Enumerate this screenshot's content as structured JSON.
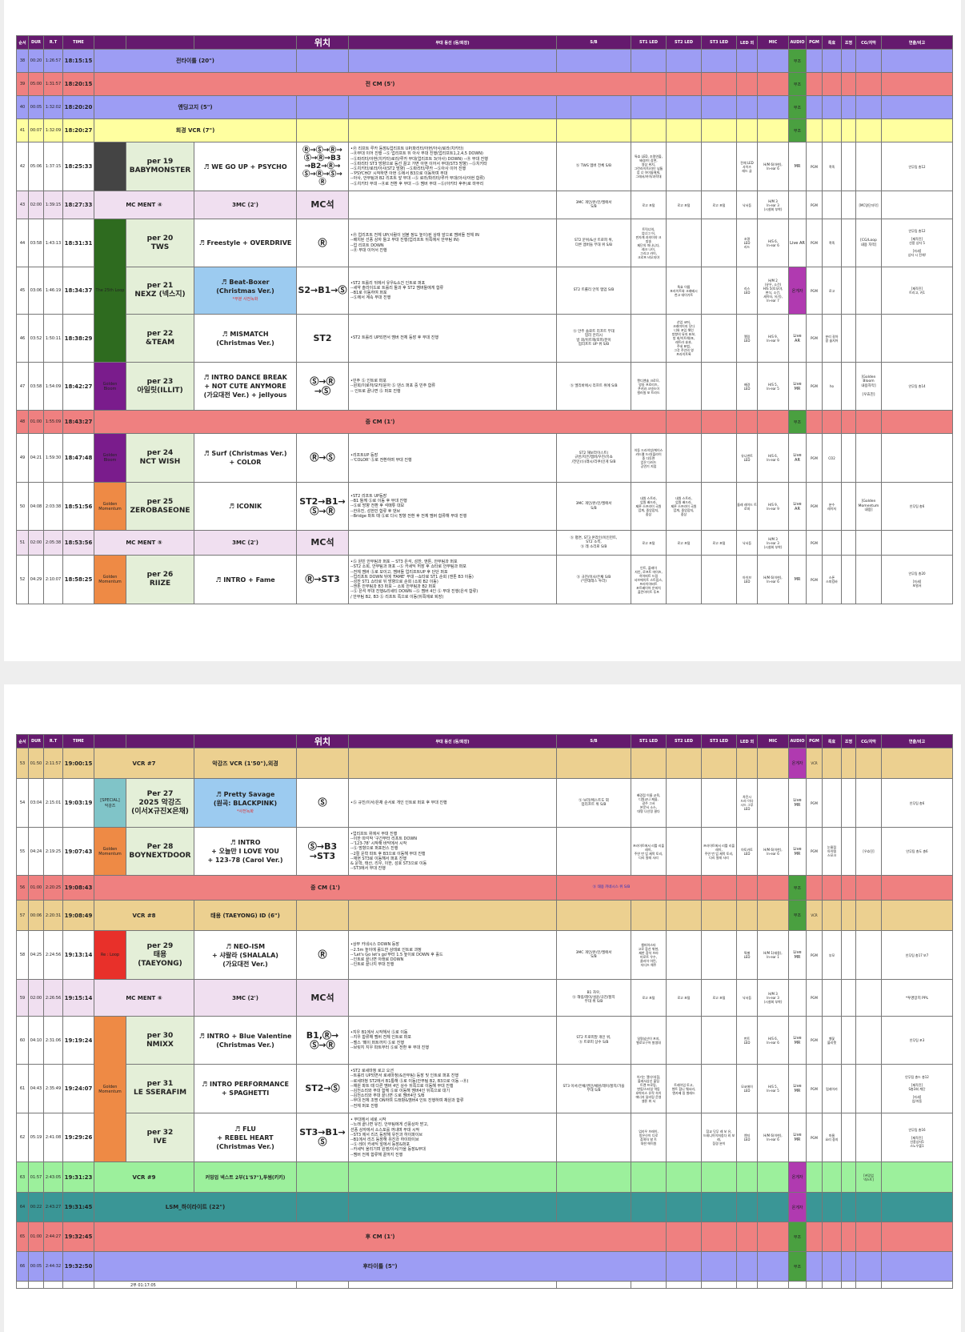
{
  "headers": [
    "순서",
    "DUR",
    "R.T",
    "TIME",
    "",
    "",
    "",
    "위치",
    "무대 동선 (등/퇴장)",
    "S/B",
    "ST1 LED",
    "ST2 LED",
    "ST3 LED",
    "LED 외",
    "MIC",
    "AUDIO",
    "PGM",
    "특효",
    "조명",
    "CG/자막",
    "연출/비고"
  ],
  "colors": {
    "header": "#651a6e",
    "cm": "#ef8080",
    "vtr": "#9d9df4",
    "yellow": "#ffffa0",
    "mcment": "#f0dff0",
    "vcr": "#ecd090",
    "green": "#9cf09c",
    "teal": "#3a9696",
    "loop": "#2e6b1f",
    "bloom": "#7a1c8c",
    "momentum": "#ee8a45",
    "special": "#80c4c8",
    "reloop": "#e8302a"
  },
  "p1": {
    "r38": {
      "no": "38",
      "dur": "00:20",
      "rt": "1:26:57",
      "time": "18:15:15",
      "title": "전타이틀 (20\")",
      "audio": "부조"
    },
    "r39": {
      "no": "39",
      "dur": "05:00",
      "rt": "1:31:57",
      "time": "18:20:15",
      "title": "전 CM (5')",
      "audio": "부조"
    },
    "r40": {
      "no": "40",
      "dur": "00:05",
      "rt": "1:32:02",
      "time": "18:20:20",
      "title": "앤딩고지 (5\")",
      "audio": "부조"
    },
    "r41": {
      "no": "41",
      "dur": "00:07",
      "rt": "1:32:09",
      "time": "18:20:27",
      "title": "회경 VCR (7\")",
      "audio": "부조"
    },
    "r42": {
      "no": "42",
      "dur": "05:06",
      "rt": "1:37:15",
      "time": "18:25:33",
      "per": "per 19",
      "artist": "BABYMONSTER",
      "song": "♬ WE GO UP + PSYCHO",
      "pos": "Ⓡ→Ⓢ→Ⓡ→\nⓈ→Ⓡ→B3\n→B2→Ⓡ→\nⓈ→Ⓡ→Ⓢ→\nⓇ",
      "desc": "•Ⓡ 리프트 루카 등장&업리프트 UP(파리타/아현/아사/로라/치키타)\n--Ⓡ무대 이어 진행 --Ⓢ 업리프트 뒤 아사 무대 진행(업리프트1,2,4,5 DOWN)\n--Ⓢ파리타/아현(치키타)로라/루카 무대(업리프트 3(아사) DOWN) --Ⓡ 무대 진행\n--Ⓢ파리타 ST3 방향으로 등선 끌고 가면 아현 이어서 무대(ST3 방향) --Ⓢ치키타\n--Ⓢ치키타/로라/아사(ST2 방향) --Ⓢ파리타/루카 --Ⓢ아사 이어 진행\n--'PSYCHO' 시작하면 아현 Ⓢ에서 B3으로 이동하며 무대\n--아사, 안무팀과 B2 리프트 앞 무대 --Ⓢ 로라/파리타/루카 무대(아사/아현 합류)\n--Ⓢ치키타 무대 --Ⓡ로 전환 후 무대 --Ⓢ 멤버 무대 --Ⓢ(아키타 후주)로 마무리",
      "sb": "Ⓢ TWS 멤버 전체 S/B",
      "st1": "특효 LED, 조명연출,\n배경/이 장면,\n영상 위치,\n그런라이트/라인 넘툼\n업 너 아이돌에게,\n그래서/카이/과학대",
      "led": "전체 LED\n사이즈\n레드 글",
      "mic": "H/M 6(아현),\nIn-ear 6",
      "au": "MR",
      "pgm": "PGM",
      "fx": "폭죽",
      "vb": "안무팀 총12"
    },
    "r43": {
      "no": "43",
      "dur": "02:00",
      "rt": "1:39:15",
      "time": "18:27:33",
      "title": "MC MENT ④",
      "song": "3MC (2')",
      "pos": "MC석",
      "sb": "3MC 개인/온/인/엘에서\nS/B",
      "st1": "로고 포털",
      "st2": "로고 포털",
      "st3": "로고 포털",
      "led": "낙서등",
      "mic": "H/M 3\nIn-ear 3\n(시설회 부착)",
      "pgm": "PGM",
      "cg": "[MC명단자막]"
    },
    "r44": {
      "no": "44",
      "dur": "03:58",
      "rt": "1:43:13",
      "time": "18:31:31",
      "per": "per 20",
      "artist": "TWS",
      "song": "♬ Freestyle + OVERDRIVE",
      "pos": "Ⓡ",
      "desc": "•Ⓡ 업리프트 전체 UP(사람이 넘볼 정도 높이)된 상태 앞으로 멤버들 전체 IN\n--배치된 선풍 상자 들고 무대 진행(업리프트 뒤쪽에서 안무팀 IN)\n--업 리프트 DOWN\n--Ⓡ 무대 이어서 진행",
      "sb": "ST2 문위/&선 트로피 위,\n다른 멤버들 무대 위 S/B",
      "st1": "트릭너의,\n업너그 어,\n핀자계 과의이야 크\n방송\n제단의 따나니다,\n레크 나이,\n그리고 카이,\n크로프 비오지야",
      "led": "조명\nLED\n리드",
      "mic": "H/S 6,\nIn-ear 6",
      "au": "Live\nAR",
      "pgm": "PGM",
      "fx": "폭죽",
      "cg": "[CG/Loop\n내용 자막]",
      "vb": "안무팀 총12\n\n[제작진]\n선풍 상자 5\n\n[자세]\n상자 시 전체!"
    },
    "r45": {
      "no": "45",
      "dur": "03:06",
      "rt": "1:46:19",
      "time": "18:34:37",
      "grp": "The 25th\nLoop",
      "per": "per 21",
      "artist": "NEXZ (넥스지)",
      "song": "♬ Beat-Boxer\n(Christmas Ver.)",
      "sub": "*부분 사전녹화",
      "pos": "S2→B1→Ⓢ",
      "desc": "•ST2 트롤리 뒤에서 유우&소건 인트로 퍼포\n--세약 솔라이드로 트롤리 돌과 후 ST2 멤버들에게 합류\n--B1로 이동하여 퍼포\n--Ⓢ에서 계속 무대 진행",
      "sb": "ST2 트롤리 안쪽 멤업 S/B",
      "st2": "특효 이름\n포라이트와 크래베시\n천고 데이거트",
      "led": "리스\nLED",
      "mic": "H/M 2\n(유우, 소건)\nH/S 5(토모야,\n현식, 소건,\n세이타, 유기),\nIn-ear 7",
      "au": "온게자",
      "pgm": "PGM",
      "fx": "로고",
      "vb": "[제작진]\n트리고, 카1"
    },
    "r46": {
      "no": "46",
      "dur": "03:52",
      "rt": "1:50:11",
      "time": "18:38:29",
      "per": "per 22",
      "artist": "&TEAM",
      "song": "♬ MISMATCH\n(Christmas Ver.)",
      "pos": "ST2",
      "desc": "•ST2 트롤리 UP되면서 멤버 전체 등장 후 무대 진행",
      "sb": "Ⓢ 안주 솔로트 리프트 무대\n업리 안리시\n방 회/이트해/포피/분이\n업리프트 UP 위 S/B",
      "st2": "산업 코머,\n크래미이지 닷다\n너와 포입 해인\n방향의 뮤지 표보,\n방 회/이트해/포,\n레트라 효과,\n주네 표범,\n그것 주인의 영\n프라이트록",
      "led": "엘림\nLED",
      "mic": "H/S 9,\nIn-ear 9",
      "au": "Live\nAR",
      "pgm": "PGM",
      "fx": "분리 갈아\n팡 솔지어"
    },
    "r47": {
      "no": "47",
      "dur": "03:58",
      "rt": "1:54:09",
      "time": "18:42:27",
      "grp": "Golden\nBloom",
      "per": "per 23",
      "artist": "아일릿(ILLIT)",
      "song": "♬ INTRO DANCE BREAK\n+ NOT CUTE ANYMORE\n(가요대전 Ver.) + jellyous",
      "pos": "Ⓢ→Ⓡ\n→Ⓢ",
      "desc": "•민주 Ⓢ 인트로 퍼포\n--원희/이로하/모카/윤아 Ⓢ 댄스 퍼포 중 민주 합류\n-- 인트로 끝나면 Ⓢ 퍼포 진행",
      "sb": "Ⓢ 엘리바에시 리프트 위에 S/B",
      "st1": "캔디앤솔 크로므,\n방송 프로리즈,\n쿠키와 크넷스이\n컬러릴 포 트라드",
      "led": "배경\nLED",
      "mic": "H/S 5,\nIn-ear 5",
      "au": "Live\nMR",
      "pgm": "PGM",
      "fx": "ho",
      "cg": "[Golden\nBloom\n내용자막]\n\n[우효진]",
      "vb": "안무팀 총14"
    },
    "r48": {
      "no": "48",
      "dur": "01:00",
      "rt": "1:55:09",
      "time": "18:43:27",
      "title": "중 CM (1')",
      "audio": "부조"
    },
    "r49": {
      "no": "49",
      "dur": "04:21",
      "rt": "1:59:30",
      "time": "18:47:48",
      "per": "per 24",
      "artist": "NCT WISH",
      "song": "♬ Surf (Christmas Ver.)\n+ COLOR",
      "pos": "Ⓡ→Ⓢ",
      "desc": "•리프트UP 등장\n--'COLOR' Ⓢ로 전환하며 무대 진행",
      "sb": "ST2 해보라이스트(\n규빈/지은/멤버/우진/유쇼\n/전민)Ⓢ(래시/리쿠)인게 S/B",
      "st1": "이동 드라이빙/케이스\n카드펠 드리(플라이\n중 다투면\n업은 다러드\n공연기 지점",
      "led": "유니덴트\nLED",
      "mic": "H/S 6,\nIn-ear 6",
      "au": "Live\nAR",
      "pgm": "PGM",
      "fx": "CO2"
    },
    "r50": {
      "no": "50",
      "dur": "04:08",
      "rt": "2:03:38",
      "time": "18:51:56",
      "grp": "Golden\nMomentum",
      "per": "per 25",
      "artist": "ZEROBASEONE",
      "song": "♬ ICONIK",
      "pos": "ST2→B1→\nⓈ→Ⓡ",
      "desc": "•ST2 리프트 UP등장\n--B1 돌께 Ⓢ로 이동 후 무대 진행\n--Ⓢ로 방향 전환 후 석매튜 대보\n--한유진, 성한빈 합류 후 댄브\n--Bridge 파트 때 Ⓢ로 다시 방향 전환 후 전체 멤버 합류해 무대 진행",
      "sb": "3MC 개인/온/인/엘에서\nS/B",
      "st1": "내원 스트라,\n업원 배드라,\n제론 스프라이 국원\n업계, 중앙잡지,\n중상",
      "st2": "내원 스트라,\n업원 배드라,\n제론 스프라이 국원\n업계, 중앙잡지,\n중상",
      "led": "돌레 레이드 트로피",
      "mic": "H/S 9,\nIn-ear 9",
      "au": "Live\nAR",
      "pgm": "PGM",
      "fx": "분수\n레이저",
      "cg": "[Golden\nMomentum\n내용]",
      "vb": "안무팀 총6"
    },
    "r51": {
      "no": "51",
      "dur": "02:00",
      "rt": "2:05:38",
      "time": "18:53:56",
      "title": "MC MENT ⑤",
      "song": "3MC (2')",
      "pos": "MC석",
      "sb": "Ⓢ 평면, ST3 온라인/이인헌트,\nST2 소측,\nⓈ 레 소리로 S/B",
      "st1": "로고 포털",
      "st2": "로고 포털",
      "st3": "로고 포털",
      "led": "낙서등",
      "mic": "H/M 3\nIn-ear 3\n(시설회 부착)",
      "pgm": "PGM"
    },
    "r52": {
      "no": "52",
      "dur": "04:29",
      "rt": "2:10:07",
      "time": "18:58:25",
      "per": "per 26",
      "artist": "RIIZE",
      "song": "♬ INTRO + Fame",
      "pos": "Ⓡ→ST3",
      "desc": "•Ⓢ 원빈 안무팀과 퍼포 -- ST3 은석, 성찬, 앤톤, 안무팀과 퍼포\n--ST2 소희, 안무팀과 퍼포 --Ⓢ 카세딕 허장 후 쇼타로 안무팀과 퍼포\n--전체 멤버 Ⓢ로 모이고, 멤버들 업리프트UP 후 단단 퍼포\n--업리프트 DOWN 뒤에 'FAME' 무대 --쇼타로 ST1 순회 (앤톤 B3 이동)\n--성찬 ST1 쇼타로 뒤 방향으로 순회 (소희 B2 이동)\n--앤톤 안무팀과 B3 퍼포 -- 소희 안무팀과 B2 퍼포\n--Ⓢ 은석 무대 진행&리세티 DOWN --Ⓢ 멤버 4인 Ⓢ 무대 진행(은석 합류)\n/ 안무팀 B2, B3 Ⓢ 리프트 쪽으로 이동(뒤쪽에로 퇴장)",
      "sb": "Ⓢ 규진/이사/은채 S/B\n(*분데레스 투라)",
      "st1": "인트, 플레이\n자인, 로프트 마이츠,\n히어피트 드림\n서브에이트 스트립스,\n프라이아버트\n포트베이어 온피치\n플란아이트 투프",
      "led": "아이브\nLED",
      "mic": "H/M 6(이현),\nIn-ear 6",
      "au": "MR",
      "pgm": "PGM",
      "fx": "스폰\n스피킹바",
      "vb": "안무팀 총20\n\n[자세]\n포멀서"
    }
  },
  "p2": {
    "r53": {
      "no": "53",
      "dur": "01:50",
      "rt": "2:11:57",
      "time": "19:00:15",
      "title": "VCR #7",
      "song": "악강즈 VCR (1'50\"),외경",
      "audio": "온게자",
      "pgm": "VCR"
    },
    "r54": {
      "no": "54",
      "dur": "03:04",
      "rt": "2:15:01",
      "time": "19:03:19",
      "grp": "[SPECIAL]\n악강즈",
      "per": "Per 27",
      "artist": "2025 악강즈\n(이서X규진X은채)",
      "song": "♬ Pretty Savage\n(원곡: BLACKPINK)",
      "sub": "*사전녹화",
      "pos": "Ⓢ",
      "desc": "•Ⓢ 규진/이서/은채 순서로 개인 인트로 퍼포 후 무대 진행",
      "sb": "Ⓢ 보라/에스트도 외\n업리프트 위 S/B",
      "st1": "배경점 이름 교육,\n디원교나 제을,\n갈주 그서\n본문서 소스,\n대명 나선정 결다",
      "led": "차진시\n드라 이다\n시드 그루\nLED",
      "au": "Live\nMR",
      "pgm": "PGM",
      "vb": "안무팀 총6"
    },
    "r55": {
      "no": "55",
      "dur": "04:24",
      "rt": "2:19:25",
      "time": "19:07:43",
      "grp": "Golden\nMomentum",
      "per": "Per 28",
      "artist": "BOYNEXTDOOR",
      "song": "♬ INTRO\n+ 오늘만 I LOVE YOU\n+ 123-78 (Carol Ver.)",
      "pos": "Ⓢ→B3\n→ST3",
      "desc": "•업리프트 위에서 무대 진행\n--이한 따각작 '구간부터 리프트 DOWN\n--'123-78' 시작해 바닥에서 시작\n--Ⓢ 방향으로 퍼포먼스 진행\n--2절 운학 파트 후 B3으로 이동해 무대 진행\n--재현 ST3로 이동해서 퍼포 진행\n& 운학, 태산, 리우, 이한, 성호 ST3으로 이동\n--ST3에서 무대 진행",
      "st1": "프라이트에서 리틀 리플레이,\n주연 번 업 제목 토리,\n다리 말레 사리",
      "st3": "프라이트에서 리틀 리플레이,\n주연 번 업 제목 토리,\n다리 말레 사리",
      "led": "아토카토\nLED",
      "mic": "H/M 6(이한),\nIn-ear 6",
      "au": "Live\nMR",
      "pgm": "PGM",
      "fx": "눈물점\n아이템\n스모크",
      "cg": "[우효진]",
      "vb": "안무팀 총도 총6"
    },
    "r56": {
      "no": "56",
      "dur": "01:00",
      "rt": "2:20:25",
      "time": "19:08:43",
      "title": "중 CM (1')",
      "sb": "Ⓢ 태용 카네시스 위 S/B",
      "audio": "부조"
    },
    "r57": {
      "no": "57",
      "dur": "00:06",
      "rt": "2:20:31",
      "time": "19:08:49",
      "title": "VCR #8",
      "song": "태용 (TAEYONG) ID (6\")",
      "audio": "부조",
      "pgm": "VCR"
    },
    "r58": {
      "no": "58",
      "dur": "04:25",
      "rt": "2:24:56",
      "time": "19:13:14",
      "grp": "Re : Loop",
      "per": "per 29",
      "artist": "태용\n(TAEYONG)",
      "song": "♬ NEO-ISM\n+ 샤랄라 (SHALALA)\n(가요대전 Ver.)",
      "pos": "Ⓡ",
      "desc": "•상부 카네시스 DOWN 등장\n--2.5m 높이에 롤드한 상태로 인트로 과정\n--'Let's Go let's go'부터 1.5 높이로 DOWN 후 홀드\n--인트로 끝나면 아래로 DOWN\n--인트로 끝나지 무대 진행",
      "sb": "3MC 개인/온/인/엘에서\nS/B",
      "st1": "챔피아스타\n고로 참선 위현,\n제한 참석 브라\n미로트 우수,\n클리어 어린,\n자디즈 해주",
      "led": "특별\nLED",
      "mic": "H/M 1(태용),\nIn-ear 1",
      "au": "Live\nMR",
      "pgm": "PGM",
      "fx": "부모",
      "vb": "안무팀 총17 보7"
    },
    "r59": {
      "no": "59",
      "dur": "02:00",
      "rt": "2:26:56",
      "time": "19:15:14",
      "title": "MC MENT ⑥",
      "song": "3MC (2')",
      "pos": "MC석",
      "sb": "B1 차우,\nⓈ 해링/레이/설윤/규진/할지\n무대 위 S/B",
      "st1": "로고 포털",
      "st2": "로고 포털",
      "st3": "로고 포털",
      "led": "낙서등",
      "mic": "H/M 3\nIn-ear 3\n(시설회 부착)",
      "pgm": "PGM",
      "vb": "*투명망지 PPL"
    },
    "r60": {
      "no": "60",
      "dur": "04:10",
      "rt": "2:31:06",
      "time": "19:19:24",
      "per": "per 30",
      "artist": "NMIXX",
      "song": "♬ INTRO + Blue Valentine\n(Christmas Ver.)",
      "pos": "B1,Ⓡ→\nⓈ→Ⓡ",
      "desc": "•지우 B1에서 시작해서 Ⓢ로 이동\n--지우 합류해 멤버 전체 인트로 퍼포\n--벨스 '페이 퍼트까지 Ⓢ로 진행\n--브릿지 지우 파트부터 Ⓢ로 전환 후 무대 진행",
      "sb": "ST2 트로피말 개인 위,\nⓈ 트로피 상수 S/B",
      "st1": "일명넘산이 프지,\n벨로오구어 발생대",
      "led": "번트\nLED",
      "mic": "H/S 6,\nIn-ear 6",
      "au": "Live\nMR",
      "pgm": "PGM",
      "fx": "벨꽃\n블리켓",
      "vb": "안무팀 포3"
    },
    "r61": {
      "no": "61",
      "dur": "04:43",
      "rt": "2:35:49",
      "time": "19:24:07",
      "grp": "Golden\nMomentum",
      "per": "per 31",
      "artist": "LE SSERAFIM",
      "song": "♬ INTRO PERFORMANCE\n+ SPAGHETTI",
      "pos": "ST2→Ⓢ",
      "desc": "•ST2 로세마청 로고 오션\n--트롤리 UP되면서 로세마청(&안무팀) 등장 및 인트로 퍼포 진행\n--로세마청 ST2에서 B1통해 Ⓢ로 이동(안무팀 B2, B3으로 이동 --Ⓡ)\n--채원 파트 때 다른 멤버 4인 상수 뒤쪽으로 이동해 무대 진행\n--김천소리와 무대 함께 Ⓢ로 이동해 멤버4인 뒤쪽으로 대기\n--김천소리와 무대 끝나면 Ⓢ로 멤버4인 S/B\n--무대 전체 조명 ON하며 드래항&멤버4 인트 진행하며 채원과 합류\n--전체 퍼포 진행",
      "sb": "ST3 이서/은채/권민/채원/레이/할지/가을\n무대 S/B",
      "st1": "이기는 엘디어(참,\n볼레서상신 불팅\n트랜 프로링,\n변동/스타일 역동\n호박리스 유작 속이\n에너지 달러링 운영\n셀폰 위 서",
      "st2": "트레이업 토고,\n첸트 합니 웨서리,\n엔카베 링 벌레드",
      "led": "모코에이\nLED",
      "mic": "H/S 5,\nIn-ear 5",
      "au": "Live\nMR",
      "pgm": "PGM",
      "fx": "럽레이카",
      "vb": "안무팀 총드 총12\n\n[제작진]\nS총3회 계단\n\n[자세]\n업/자동"
    },
    "r62": {
      "no": "62",
      "dur": "05:19",
      "rt": "2:41:08",
      "time": "19:29:26",
      "per": "per 32",
      "artist": "IVE",
      "song": "♬ FLU\n+ REBEL HEART\n(Christmas Ver.)",
      "pos": "ST3→B1→\nⓈ",
      "desc": "• 무대에서 세로 시작\n--노래 끝나면 유진, 안무팀에게 선풍상자 받고,\n  선풍 상자에서 소스포를 꺼내며 무대 시작\n--ST3 에서 리즈 등장해 유진과 하이파이브\n--B1에서 리즈 등장해 유진과 하이파이브\n--Ⓢ 레이 카세딕 앞에서 등장&퍼포\n--카세딕 올리기며 원영/이서/가을 등장&무대\n--멤버 전체 합류해 끝까지 진행",
      "st1": "업리우 브레이,\n방은신이 디로\n참여자 발 트\n대한 에이원",
      "st3": "참교 닷무 레 쏘 유,\n드레니이이처칭다 외 보레,\n참경 분이",
      "led": "엔지\nLED",
      "mic": "H/M 6(이현),\nIn-ear 6",
      "au": "Live\nMR",
      "pgm": "PGM",
      "fx": "마물\n요리 중지",
      "vb": "안무팀 총16\n\n[제작진]\n선풍상자5\n스노우볼1"
    },
    "r63": {
      "no": "63",
      "dur": "01:57",
      "rt": "2:43:05",
      "time": "19:31:23",
      "title": "VCR #9",
      "song": "커밍업 넥스트 2부(1'57\"),투썸(키키)",
      "audio": "온게자",
      "cg": "[커밍업\n넥스트]"
    },
    "r64": {
      "no": "64",
      "dur": "00:22",
      "rt": "2:43:27",
      "time": "19:31:45",
      "title": "LSM_하이라이트 (22\")",
      "audio": "온게자"
    },
    "r65": {
      "no": "65",
      "dur": "01:00",
      "rt": "2:44:27",
      "time": "19:32:45",
      "title": "후 CM (1')",
      "audio": "부조"
    },
    "r66": {
      "no": "66",
      "dur": "00:05",
      "rt": "2:44:32",
      "time": "19:32:50",
      "title": "후타이틀 (5\")",
      "audio": "부조"
    },
    "foot": "2부 01:17:05"
  }
}
